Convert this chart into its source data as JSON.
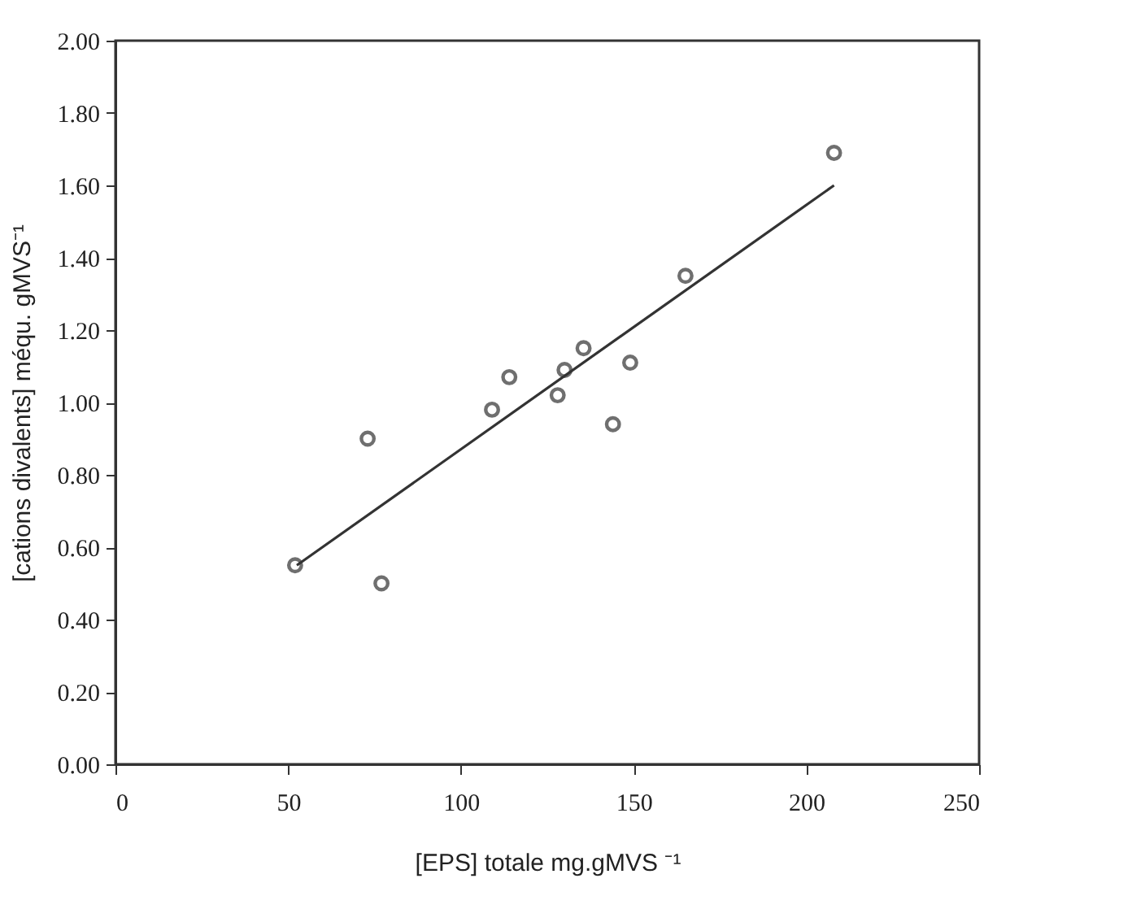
{
  "chart_data": {
    "type": "scatter",
    "xlabel": "[EPS] totale mg.gMVS ⁻¹",
    "ylabel": "[cations divalents] méqu. gMVS⁻¹",
    "xlim": [
      0,
      250
    ],
    "xticks": [
      0,
      50,
      100,
      150,
      200,
      250
    ],
    "ylim": [
      0,
      2
    ],
    "yticks": [
      {
        "value": 0,
        "label": "0.00"
      },
      {
        "value": 0.2,
        "label": "0.20"
      },
      {
        "value": 0.4,
        "label": "0.40"
      },
      {
        "value": 0.6,
        "label": "0.60"
      },
      {
        "value": 0.8,
        "label": "0.80"
      },
      {
        "value": 1.0,
        "label": "1.00"
      },
      {
        "value": 1.2,
        "label": "1.20"
      },
      {
        "value": 1.4,
        "label": "1.40"
      },
      {
        "value": 1.6,
        "label": "1.60"
      },
      {
        "value": 1.8,
        "label": "1.80"
      },
      {
        "value": 2.0,
        "label": "2.00"
      }
    ],
    "grid": false,
    "series": [
      {
        "color": "#333333",
        "marker": "circle",
        "x": [
          52,
          73,
          77,
          109,
          114,
          128,
          130,
          135.5,
          144,
          149,
          165,
          208
        ],
        "values": [
          0.55,
          0.9,
          0.5,
          0.98,
          1.07,
          1.02,
          1.09,
          1.15,
          0.94,
          1.11,
          1.35,
          1.69
        ]
      },
      {
        "type": "line",
        "color": "#333333",
        "line_style": "solid",
        "x": [
          52.5,
          208
        ],
        "values": [
          0.55,
          1.6
        ]
      }
    ]
  }
}
